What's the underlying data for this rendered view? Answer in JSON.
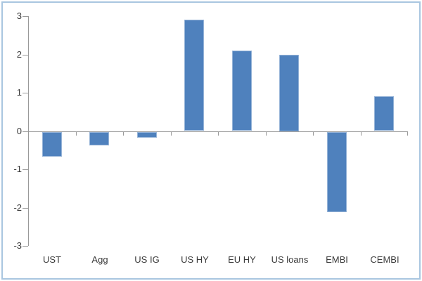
{
  "frame": {
    "border_color": "#a9c6e0",
    "background_color": "#ffffff"
  },
  "chart_data": {
    "type": "bar",
    "title": "",
    "xlabel": "",
    "ylabel": "",
    "categories": [
      "UST",
      "Agg",
      "US IG",
      "US HY",
      "EU HY",
      "US loans",
      "EMBI",
      "CEMBI"
    ],
    "values": [
      -0.65,
      -0.35,
      -0.15,
      2.9,
      2.1,
      2.0,
      -2.1,
      0.9
    ],
    "ylim": [
      -3,
      3
    ],
    "yticks": [
      3,
      2,
      1,
      0,
      -1,
      -2,
      -3
    ],
    "grid": false,
    "legend": false,
    "bar_color": "#4f81bd",
    "bar_border_color": "#95b3d7",
    "axis_color": "#999999",
    "label_color": "#3a3a3a"
  }
}
